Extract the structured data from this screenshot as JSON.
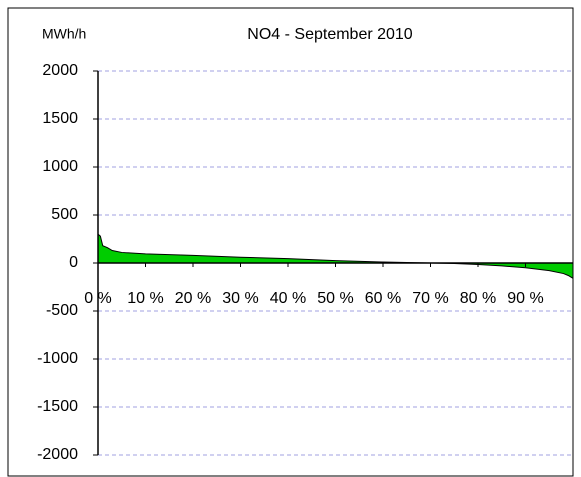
{
  "chart_data": {
    "type": "area",
    "title": "NO4  - September 2010",
    "ylabel": "MWh/h",
    "x": [
      0,
      0.5,
      1,
      2,
      3,
      5,
      10,
      20,
      30,
      40,
      50,
      60,
      70,
      75,
      80,
      85,
      90,
      95,
      98,
      99,
      100
    ],
    "values": [
      300,
      280,
      180,
      160,
      130,
      110,
      95,
      80,
      60,
      45,
      25,
      10,
      0,
      -5,
      -15,
      -30,
      -50,
      -80,
      -110,
      -130,
      -160
    ],
    "color": "#00cc00",
    "xlim": [
      0,
      100
    ],
    "xticks": [
      {
        "value": 0,
        "label": "0 %"
      },
      {
        "value": 10,
        "label": "10 %"
      },
      {
        "value": 20,
        "label": "20 %"
      },
      {
        "value": 30,
        "label": "30 %"
      },
      {
        "value": 40,
        "label": "40 %"
      },
      {
        "value": 50,
        "label": "50 %"
      },
      {
        "value": 60,
        "label": "60 %"
      },
      {
        "value": 70,
        "label": "70 %"
      },
      {
        "value": 80,
        "label": "80 %"
      },
      {
        "value": 90,
        "label": "90 %"
      }
    ],
    "ylim": [
      -2000,
      2000
    ],
    "yticks": [
      2000,
      1500,
      1000,
      500,
      0,
      -500,
      -1000,
      -1500,
      -2000
    ],
    "grid": true
  }
}
